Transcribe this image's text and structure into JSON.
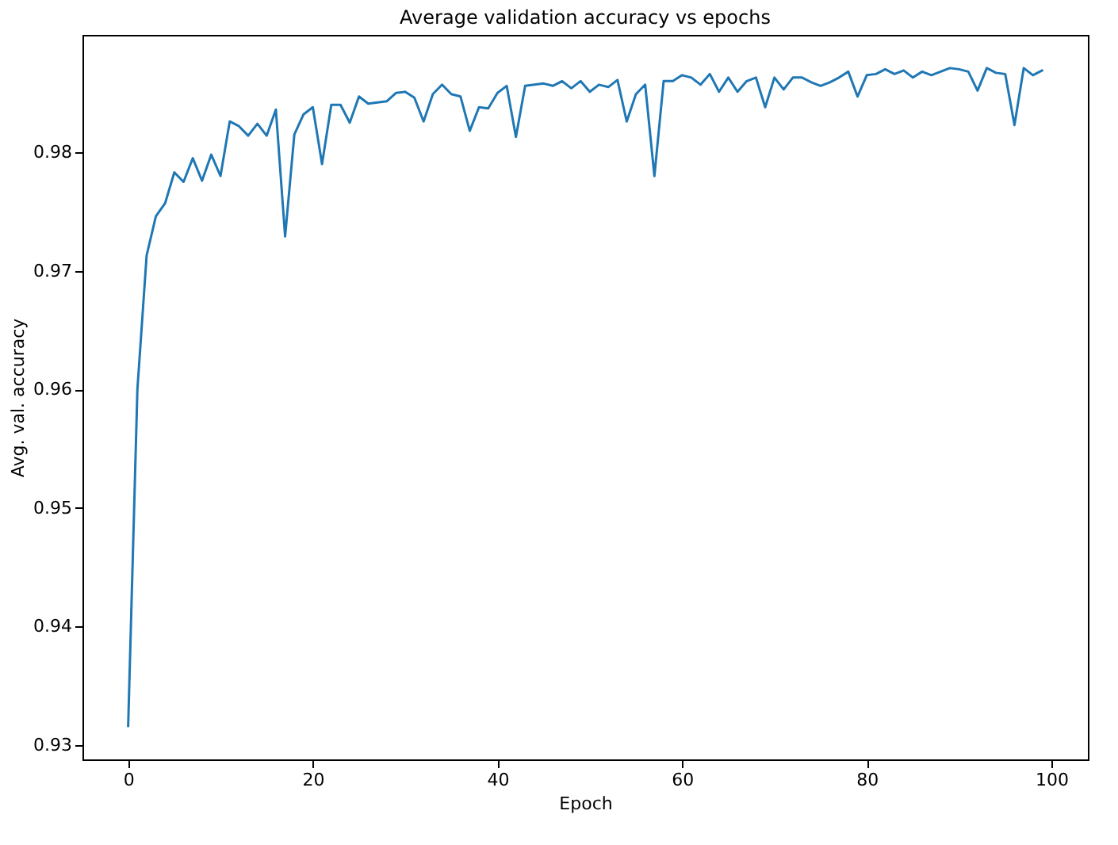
{
  "chart_data": {
    "type": "line",
    "title": "Average validation accuracy vs epochs",
    "xlabel": "Epoch",
    "ylabel": "Avg. val. accuracy",
    "x": [
      0,
      1,
      2,
      3,
      4,
      5,
      6,
      7,
      8,
      9,
      10,
      11,
      12,
      13,
      14,
      15,
      16,
      17,
      18,
      19,
      20,
      21,
      22,
      23,
      24,
      25,
      26,
      27,
      28,
      29,
      30,
      31,
      32,
      33,
      34,
      35,
      36,
      37,
      38,
      39,
      40,
      41,
      42,
      43,
      44,
      45,
      46,
      47,
      48,
      49,
      50,
      51,
      52,
      53,
      54,
      55,
      56,
      57,
      58,
      59,
      60,
      61,
      62,
      63,
      64,
      65,
      66,
      67,
      68,
      69,
      70,
      71,
      72,
      73,
      74,
      75,
      76,
      77,
      78,
      79,
      80,
      81,
      82,
      83,
      84,
      85,
      86,
      87,
      88,
      89,
      90,
      91,
      92,
      93,
      94,
      95,
      96,
      97,
      98,
      99
    ],
    "series": [
      {
        "color": "#1f77b4",
        "values": [
          0.9316,
          0.96,
          0.9713,
          0.9746,
          0.9757,
          0.9783,
          0.9775,
          0.9795,
          0.9776,
          0.9798,
          0.978,
          0.9826,
          0.9822,
          0.9814,
          0.9824,
          0.9814,
          0.9836,
          0.9729,
          0.9815,
          0.9832,
          0.9838,
          0.979,
          0.984,
          0.984,
          0.9825,
          0.9847,
          0.9841,
          0.9842,
          0.9843,
          0.985,
          0.9851,
          0.9846,
          0.9826,
          0.9849,
          0.9857,
          0.9849,
          0.9847,
          0.9818,
          0.9838,
          0.9837,
          0.985,
          0.9856,
          0.9813,
          0.9856,
          0.9857,
          0.9858,
          0.9856,
          0.986,
          0.9854,
          0.986,
          0.9851,
          0.9857,
          0.9855,
          0.9861,
          0.9826,
          0.9849,
          0.9857,
          0.978,
          0.986,
          0.986,
          0.9865,
          0.9863,
          0.9857,
          0.9866,
          0.9851,
          0.9863,
          0.9851,
          0.986,
          0.9863,
          0.9838,
          0.9863,
          0.9853,
          0.9863,
          0.9863,
          0.9859,
          0.9856,
          0.9859,
          0.9863,
          0.9868,
          0.9847,
          0.9865,
          0.9866,
          0.987,
          0.9866,
          0.9869,
          0.9863,
          0.9868,
          0.9865,
          0.9868,
          0.9871,
          0.987,
          0.9868,
          0.9852,
          0.9871,
          0.9867,
          0.9866,
          0.9823,
          0.9871,
          0.9865,
          0.9869
        ]
      }
    ],
    "xlim": [
      -4.95,
      103.95
    ],
    "xticks": [
      0,
      20,
      40,
      60,
      80,
      100
    ],
    "ylim": [
      0.9288,
      0.9899
    ],
    "yticks": [
      0.93,
      0.94,
      0.95,
      0.96,
      0.97,
      0.98
    ],
    "grid": false,
    "marker": "none",
    "line_style": "solid"
  }
}
